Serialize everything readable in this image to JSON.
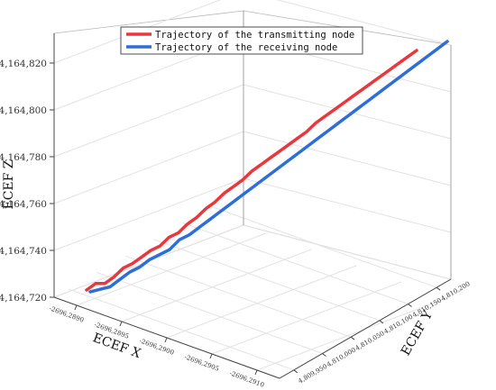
{
  "chart_data": {
    "type": "line",
    "projection": "3d",
    "title": "",
    "xlabel": "ECEF X",
    "ylabel": "ECEF Y",
    "zlabel": "ECEF Z",
    "x_ticks": [
      "-2696,2890",
      "-2696,2895",
      "-2696,2900",
      "-2696,2905",
      "-2696,2910"
    ],
    "y_ticks": [
      "4,809,950",
      "4,810,000",
      "4,810,050",
      "4,810,100",
      "4,810,150",
      "4,810,200"
    ],
    "z_ticks": [
      {
        "value": 4164720,
        "label": "4,164,720"
      },
      {
        "value": 4164740,
        "label": "4,164,740"
      },
      {
        "value": 4164760,
        "label": "4,164,760"
      },
      {
        "value": 4164780,
        "label": "4,164,780"
      },
      {
        "value": 4164800,
        "label": "4,164,800"
      },
      {
        "value": 4164820,
        "label": "4,164,820"
      }
    ],
    "zlim": [
      4164720,
      4164830
    ],
    "grid": true,
    "legend_position": "top-center",
    "series": [
      {
        "name": "Trajectory of the transmitting node",
        "color": "#e8383d",
        "z": [
          4164720,
          4164723,
          4164723,
          4164726,
          4164730,
          4164732,
          4164735,
          4164738,
          4164740,
          4164744,
          4164746,
          4164750,
          4164753,
          4164757,
          4164760,
          4164764,
          4164767,
          4164770,
          4164774,
          4164777,
          4164780,
          4164783,
          4164786,
          4164789,
          4164792,
          4164796,
          4164799,
          4164802,
          4164805,
          4164808,
          4164811,
          4164814,
          4164817,
          4164820,
          4164823,
          4164826,
          4164829
        ]
      },
      {
        "name": "Trajectory of the receiving node",
        "color": "#2d6fd6",
        "z": [
          4164719,
          4164720,
          4164721,
          4164724,
          4164727,
          4164729,
          4164732,
          4164734,
          4164736,
          4164740,
          4164742,
          4164745,
          4164748,
          4164751,
          4164754,
          4164757,
          4164760,
          4164763,
          4164766,
          4164769,
          4164772,
          4164775,
          4164778,
          4164781,
          4164784,
          4164787,
          4164790,
          4164793,
          4164796,
          4164799,
          4164802,
          4164805,
          4164808,
          4164811,
          4164814,
          4164817,
          4164820
        ]
      }
    ]
  }
}
